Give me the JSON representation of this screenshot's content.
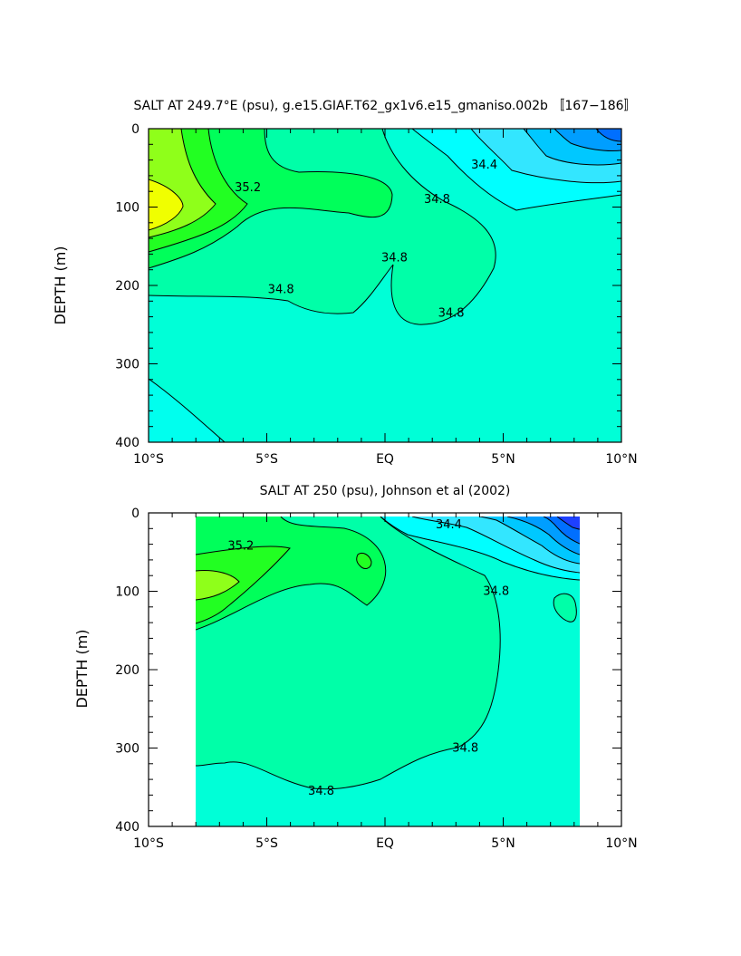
{
  "chart_data": [
    {
      "type": "contour",
      "title": "SALT AT 249.7°E (psu), g.e15.GIAF.T62_gx1v6.e15_gmaniso.002b 〚167−186〛",
      "ylabel": "DEPTH (m)",
      "xlabel": "",
      "x_tick_labels": [
        "10°S",
        "5°S",
        "EQ",
        "5°N",
        "10°N"
      ],
      "x_ticks": [
        -10,
        -5,
        0,
        5,
        10
      ],
      "y_tick_labels": [
        "0",
        "100",
        "200",
        "300",
        "400"
      ],
      "y_ticks": [
        0,
        100,
        200,
        300,
        400
      ],
      "xlim": [
        -10,
        10
      ],
      "ylim": [
        400,
        0
      ],
      "contour_labels": [
        {
          "text": "35.2",
          "x": -5.8,
          "y": 75
        },
        {
          "text": "34.4",
          "x": 4.2,
          "y": 46
        },
        {
          "text": "34.8",
          "x": 2.2,
          "y": 90
        },
        {
          "text": "34.8",
          "x": 0.4,
          "y": 165
        },
        {
          "text": "34.8",
          "x": -4.4,
          "y": 205
        },
        {
          "text": "34.8",
          "x": 2.8,
          "y": 235
        }
      ]
    },
    {
      "type": "contour",
      "title": "SALT AT 250 (psu), Johnson et al (2002)",
      "ylabel": "DEPTH (m)",
      "xlabel": "",
      "x_tick_labels": [
        "10°S",
        "5°S",
        "EQ",
        "5°N",
        "10°N"
      ],
      "x_ticks": [
        -10,
        -5,
        0,
        5,
        10
      ],
      "y_tick_labels": [
        "0",
        "100",
        "200",
        "300",
        "400"
      ],
      "y_ticks": [
        0,
        100,
        200,
        300,
        400
      ],
      "xlim": [
        -10,
        10
      ],
      "ylim": [
        400,
        0
      ],
      "data_extent_x": [
        -8,
        8.2
      ],
      "data_extent_y": [
        8,
        400
      ],
      "contour_labels": [
        {
          "text": "35.2",
          "x": -6.1,
          "y": 42
        },
        {
          "text": "34.4",
          "x": 2.7,
          "y": 15
        },
        {
          "text": "34.8",
          "x": 4.7,
          "y": 100
        },
        {
          "text": "34.8",
          "x": 3.4,
          "y": 300
        },
        {
          "text": "34.8",
          "x": -2.7,
          "y": 355
        }
      ]
    }
  ]
}
